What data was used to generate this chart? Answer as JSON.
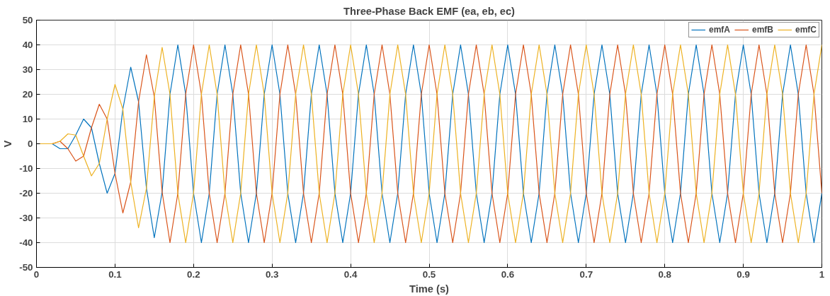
{
  "chart_data": {
    "type": "line",
    "title": "Three-Phase Back EMF (ea, eb, ec)",
    "xlabel": "Time (s)",
    "ylabel": "V",
    "x": [
      0,
      0.01,
      0.02,
      0.03,
      0.04,
      0.05,
      0.06,
      0.07,
      0.08,
      0.09,
      0.1,
      0.11,
      0.12,
      0.13,
      0.14,
      0.15,
      0.16,
      0.17,
      0.18,
      0.19,
      0.2,
      0.21,
      0.22,
      0.23,
      0.24,
      0.25,
      0.26,
      0.27,
      0.28,
      0.29,
      0.3,
      0.31,
      0.32,
      0.33,
      0.34,
      0.35,
      0.36,
      0.37,
      0.38,
      0.39,
      0.4,
      0.41,
      0.42,
      0.43,
      0.44,
      0.45,
      0.46,
      0.47,
      0.48,
      0.49,
      0.5,
      0.51,
      0.52,
      0.53,
      0.54,
      0.55,
      0.56,
      0.57,
      0.58,
      0.59,
      0.6,
      0.61,
      0.62,
      0.63,
      0.64,
      0.65,
      0.66,
      0.67,
      0.68,
      0.69,
      0.7,
      0.71,
      0.72,
      0.73,
      0.74,
      0.75,
      0.76,
      0.77,
      0.78,
      0.79,
      0.8,
      0.81,
      0.82,
      0.83,
      0.84,
      0.85,
      0.86,
      0.87,
      0.88,
      0.89,
      0.9,
      0.91,
      0.92,
      0.93,
      0.94,
      0.95,
      0.96,
      0.97,
      0.98,
      0.99,
      1
    ],
    "series": [
      {
        "name": "emfA",
        "color": "#0072bd",
        "values": [
          0,
          0,
          0,
          -2,
          -2,
          3.5,
          10,
          6.5,
          -8,
          -20,
          -12,
          14,
          31,
          17,
          -18,
          -38,
          -19.5,
          20,
          40,
          20,
          -20,
          -40,
          -20,
          20,
          40,
          20,
          -20,
          -40,
          -20,
          20,
          40,
          20,
          -20,
          -40,
          -20,
          20,
          40,
          20,
          -20,
          -40,
          -20,
          20,
          40,
          20,
          -20,
          -40,
          -20,
          20,
          40,
          20,
          -20,
          -40,
          -20,
          20,
          40,
          20,
          -20,
          -40,
          -20,
          20,
          40,
          20,
          -20,
          -40,
          -20,
          20,
          40,
          20,
          -20,
          -40,
          -20,
          20,
          40,
          20,
          -20,
          -40,
          -20,
          20,
          40,
          20,
          -20,
          -40,
          -20,
          20,
          40,
          20,
          -20,
          -40,
          -20,
          20,
          40,
          20,
          -20,
          -40,
          -20,
          20,
          40,
          20,
          -20,
          -40,
          -20
        ]
      },
      {
        "name": "emfB",
        "color": "#d95319",
        "values": [
          0,
          0,
          0,
          1,
          -2,
          -7,
          -5,
          6.5,
          16,
          10,
          -12,
          -28,
          -15.5,
          17,
          36,
          19,
          -19.5,
          -40,
          -20,
          20,
          40,
          20,
          -20,
          -40,
          -20,
          20,
          40,
          20,
          -20,
          -40,
          -20,
          20,
          40,
          20,
          -20,
          -40,
          -20,
          20,
          40,
          20,
          -20,
          -40,
          -20,
          20,
          40,
          20,
          -20,
          -40,
          -20,
          20,
          40,
          20,
          -20,
          -40,
          -20,
          20,
          40,
          20,
          -20,
          -40,
          -20,
          20,
          40,
          20,
          -20,
          -40,
          -20,
          20,
          40,
          20,
          -20,
          -40,
          -20,
          20,
          40,
          20,
          -20,
          -40,
          -20,
          20,
          40,
          20,
          -20,
          -40,
          -20,
          20,
          40,
          20,
          -20,
          -40,
          -20,
          20,
          40,
          20,
          -20,
          -40,
          -20,
          20,
          40,
          20,
          -20
        ]
      },
      {
        "name": "emfC",
        "color": "#edb120",
        "values": [
          0,
          0,
          0,
          1,
          4,
          3.5,
          -5,
          -13,
          -8,
          10,
          24,
          14,
          -15.5,
          -34,
          -18,
          19,
          39,
          20,
          -20,
          -40,
          -20,
          20,
          40,
          20,
          -20,
          -40,
          -20,
          20,
          40,
          20,
          -20,
          -40,
          -20,
          20,
          40,
          20,
          -20,
          -40,
          -20,
          20,
          40,
          20,
          -20,
          -40,
          -20,
          20,
          40,
          20,
          -20,
          -40,
          -20,
          20,
          40,
          20,
          -20,
          -40,
          -20,
          20,
          40,
          20,
          -20,
          -40,
          -20,
          20,
          40,
          20,
          -20,
          -40,
          -20,
          20,
          40,
          20,
          -20,
          -40,
          -20,
          20,
          40,
          20,
          -20,
          -40,
          -20,
          20,
          40,
          20,
          -20,
          -40,
          -20,
          20,
          40,
          20,
          -20,
          -40,
          -20,
          20,
          40,
          20,
          -20,
          -40,
          -20,
          20,
          40
        ]
      }
    ],
    "xlim": [
      0,
      1
    ],
    "xticks": [
      0,
      0.1,
      0.2,
      0.3,
      0.4,
      0.5,
      0.6,
      0.7,
      0.8,
      0.9,
      1
    ],
    "ylim": [
      -50,
      50
    ],
    "yticks": [
      -50,
      -40,
      -30,
      -20,
      -10,
      0,
      10,
      20,
      30,
      40,
      50
    ],
    "grid": true,
    "legend": "top right",
    "marker": "none",
    "line_style": "solid"
  }
}
